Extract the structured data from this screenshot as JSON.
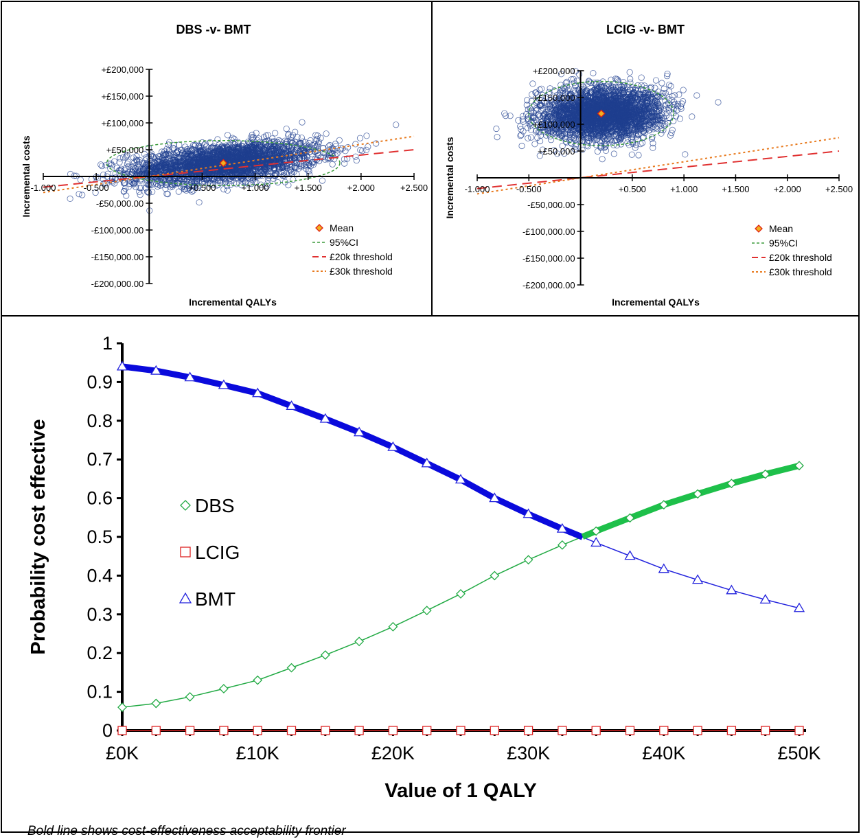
{
  "chart_data": [
    {
      "type": "scatter",
      "title": "DBS -v- BMT",
      "xlabel": "Incremental QALYs",
      "ylabel": "Incremental costs",
      "xlim": [
        -1.0,
        2.5
      ],
      "ylim": [
        -200000,
        200000
      ],
      "x_tick_labels": [
        "-1.000",
        "-0.500",
        "+0.500",
        "+1.000",
        "+1.500",
        "+2.000",
        "+2.500"
      ],
      "x_tick_values": [
        -1.0,
        -0.5,
        0.5,
        1.0,
        1.5,
        2.0,
        2.5
      ],
      "y_tick_labels": [
        "+£200,000",
        "+£150,000",
        "+£100,000",
        "+£50,000",
        "-£50,000.00",
        "-£100,000.00",
        "-£150,000.00",
        "-£200,000.00"
      ],
      "y_tick_values": [
        200000,
        150000,
        100000,
        50000,
        -50000,
        -100000,
        -150000,
        -200000
      ],
      "cloud": {
        "mean_x": 0.7,
        "mean_y": 25000,
        "sd_x": 0.45,
        "sd_y": 20000,
        "corr": 0.45,
        "point_color": "#1f3f8f"
      },
      "mean": {
        "x": 0.7,
        "y": 25000
      },
      "ci95": {
        "rx": 1.1,
        "ry": 42000
      },
      "thresholds": [
        {
          "name": "£20k threshold",
          "slope": 20000,
          "color": "#e03030",
          "dash": "14,8"
        },
        {
          "name": "£30k threshold",
          "slope": 30000,
          "color": "#e87a1e",
          "dash": "3,4"
        }
      ],
      "legend": [
        "Mean",
        "95%CI",
        "£20k threshold",
        "£30k threshold"
      ],
      "legend_position": "bottom-right",
      "colors": {
        "mean": "#f0b020",
        "mean_border": "#e02010",
        "ci": "#3a9a3a"
      }
    },
    {
      "type": "scatter",
      "title": "LCIG -v- BMT",
      "xlabel": "Incremental QALYs",
      "ylabel": "Incremental costs",
      "xlim": [
        -1.0,
        2.5
      ],
      "ylim": [
        -200000,
        200000
      ],
      "x_tick_labels": [
        "-1.000",
        "-0.500",
        "+0.500",
        "+1.000",
        "+1.500",
        "+2.000",
        "+2.500"
      ],
      "x_tick_values": [
        -1.0,
        -0.5,
        0.5,
        1.0,
        1.5,
        2.0,
        2.5
      ],
      "y_tick_labels": [
        "+£200,000",
        "+£150,000",
        "+£100,000",
        "+£50,000",
        "-£50,000.00",
        "-£100,000.00",
        "-£150,000.00",
        "-£200,000.00"
      ],
      "y_tick_values": [
        200000,
        150000,
        100000,
        50000,
        -50000,
        -100000,
        -150000,
        -200000
      ],
      "cloud": {
        "mean_x": 0.2,
        "mean_y": 120000,
        "sd_x": 0.3,
        "sd_y": 25000,
        "corr": 0.1,
        "point_color": "#1f3f8f"
      },
      "mean": {
        "x": 0.2,
        "y": 120000
      },
      "ci95": {
        "rx": 0.7,
        "ry": 60000
      },
      "thresholds": [
        {
          "name": "£20k threshold",
          "slope": 20000,
          "color": "#e03030",
          "dash": "14,8"
        },
        {
          "name": "£30k threshold",
          "slope": 30000,
          "color": "#e87a1e",
          "dash": "3,4"
        }
      ],
      "legend": [
        "Mean",
        "95%CI",
        "£20k threshold",
        "£30k threshold"
      ],
      "legend_position": "bottom-right",
      "colors": {
        "mean": "#f0b020",
        "mean_border": "#e02010",
        "ci": "#3a9a3a"
      }
    },
    {
      "type": "line",
      "title": "",
      "xlabel": "Value of 1 QALY",
      "ylabel": "Probability cost effective",
      "xlim": [
        0,
        50000
      ],
      "ylim": [
        0,
        1
      ],
      "x_tick_labels": [
        "£0K",
        "£10K",
        "£20K",
        "£30K",
        "£40K",
        "£50K"
      ],
      "x_tick_values": [
        0,
        10000,
        20000,
        30000,
        40000,
        50000
      ],
      "y_tick_labels": [
        "0",
        "0.1",
        "0.2",
        "0.3",
        "0.4",
        "0.5",
        "0.6",
        "0.7",
        "0.8",
        "0.9",
        "1"
      ],
      "y_tick_values": [
        0,
        0.1,
        0.2,
        0.3,
        0.4,
        0.5,
        0.6,
        0.7,
        0.8,
        0.9,
        1
      ],
      "x": [
        0,
        2500,
        5000,
        7500,
        10000,
        12500,
        15000,
        17500,
        20000,
        22500,
        25000,
        27500,
        30000,
        32500,
        35000,
        37500,
        40000,
        42500,
        45000,
        47500,
        50000
      ],
      "series": [
        {
          "name": "DBS",
          "color": "#22aa44",
          "marker": "diamond",
          "values": [
            0.06,
            0.07,
            0.087,
            0.108,
            0.13,
            0.162,
            0.195,
            0.23,
            0.268,
            0.31,
            0.353,
            0.4,
            0.441,
            0.479,
            0.515,
            0.549,
            0.583,
            0.611,
            0.638,
            0.662,
            0.684
          ]
        },
        {
          "name": "LCIG",
          "color": "#dd2222",
          "marker": "square",
          "values": [
            0,
            0,
            0,
            0,
            0,
            0,
            0,
            0,
            0,
            0,
            0,
            0,
            0,
            0,
            0,
            0,
            0,
            0,
            0,
            0,
            0
          ]
        },
        {
          "name": "BMT",
          "color": "#2222dd",
          "marker": "triangle",
          "values": [
            0.94,
            0.929,
            0.912,
            0.892,
            0.871,
            0.838,
            0.805,
            0.77,
            0.732,
            0.69,
            0.648,
            0.6,
            0.559,
            0.521,
            0.485,
            0.451,
            0.417,
            0.389,
            0.362,
            0.338,
            0.316
          ]
        }
      ],
      "frontier_switch_x": 34000,
      "legend_position": "left-middle"
    }
  ],
  "footnote": "Bold line shows cost-effectiveness acceptability frontier"
}
